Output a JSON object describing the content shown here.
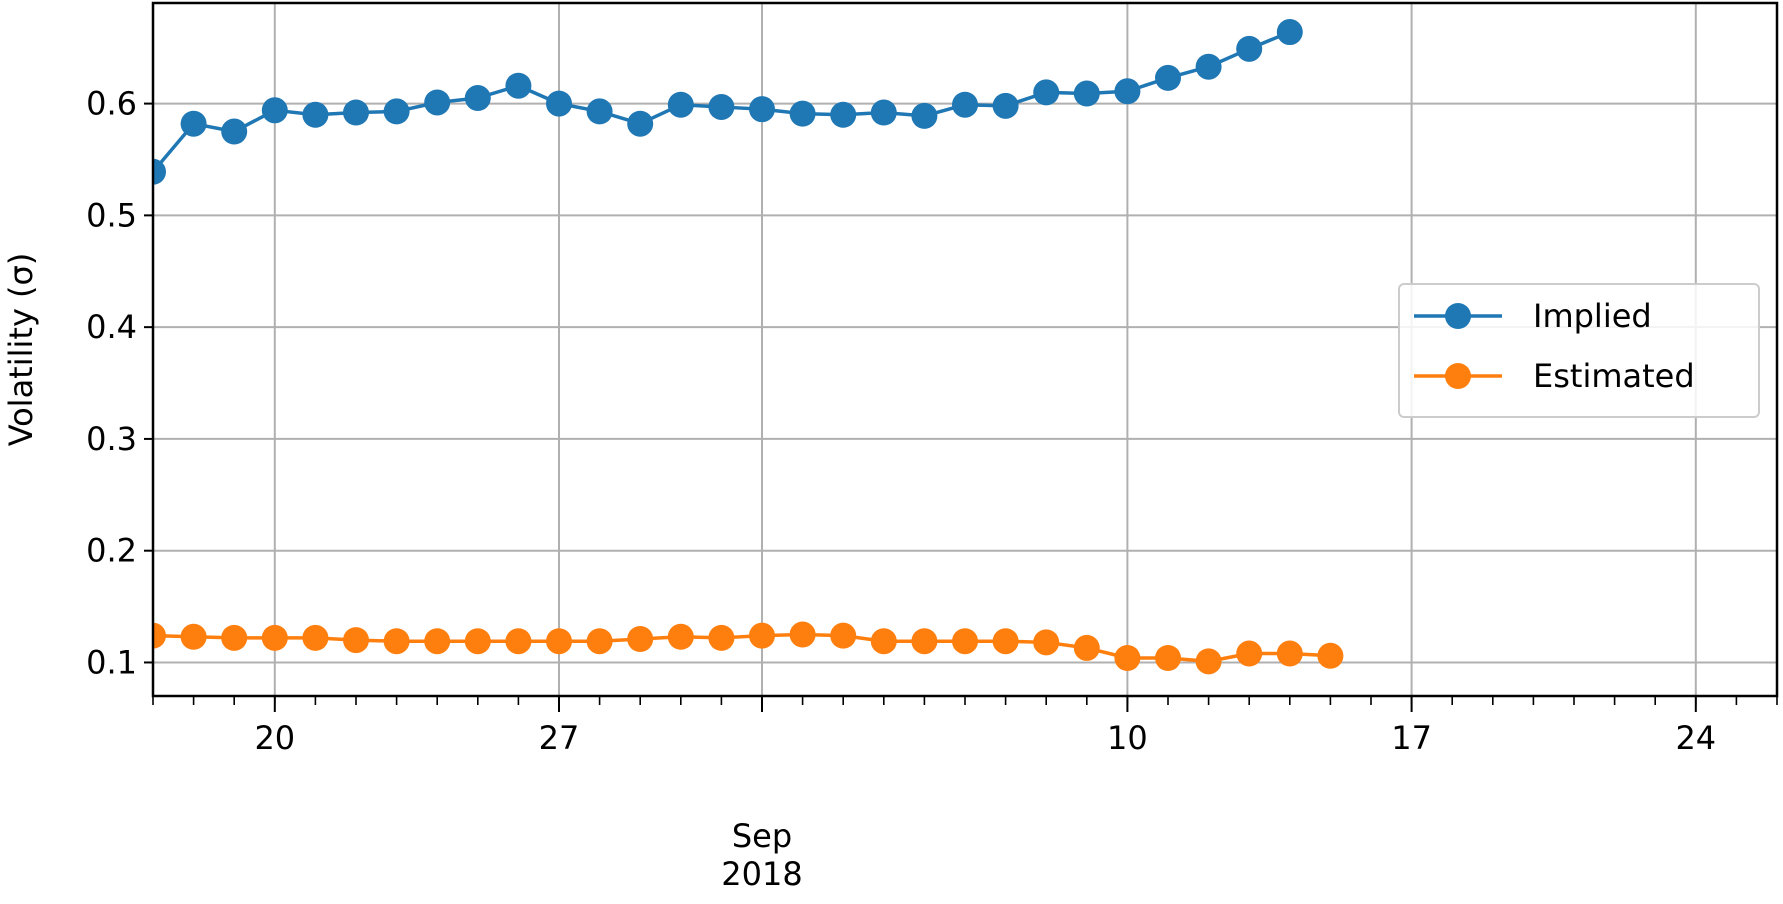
{
  "chart_data": {
    "type": "line",
    "ylabel": "Volatility (σ)",
    "xlabel": "",
    "ylim": [
      0.07,
      0.69
    ],
    "xlim": [
      "2018-08-17",
      "2018-09-26"
    ],
    "yticks": [
      0.1,
      0.2,
      0.3,
      0.4,
      0.5,
      0.6
    ],
    "ytick_labels": [
      "0.1",
      "0.2",
      "0.3",
      "0.4",
      "0.5",
      "0.6"
    ],
    "xticks_major": [
      {
        "date": "2018-08-20",
        "label": "20"
      },
      {
        "date": "2018-08-27",
        "label": "27"
      },
      {
        "date": "2018-09-01",
        "label": "Sep\n2018"
      },
      {
        "date": "2018-09-10",
        "label": "10"
      },
      {
        "date": "2018-09-17",
        "label": "17"
      },
      {
        "date": "2018-09-24",
        "label": "24"
      }
    ],
    "grid": true,
    "legend_position": "center-right",
    "dates": [
      "2018-08-17",
      "2018-08-18",
      "2018-08-19",
      "2018-08-20",
      "2018-08-21",
      "2018-08-22",
      "2018-08-23",
      "2018-08-24",
      "2018-08-25",
      "2018-08-26",
      "2018-08-27",
      "2018-08-28",
      "2018-08-29",
      "2018-08-30",
      "2018-08-31",
      "2018-09-01",
      "2018-09-02",
      "2018-09-03",
      "2018-09-04",
      "2018-09-05",
      "2018-09-06",
      "2018-09-07",
      "2018-09-08",
      "2018-09-09",
      "2018-09-10",
      "2018-09-11",
      "2018-09-12",
      "2018-09-13",
      "2018-09-14",
      "2018-09-15",
      "2018-09-16",
      "2018-09-17",
      "2018-09-18",
      "2018-09-19",
      "2018-09-20",
      "2018-09-21",
      "2018-09-22",
      "2018-09-23",
      "2018-09-24",
      "2018-09-25",
      "2018-09-26"
    ],
    "series": [
      {
        "name": "Implied",
        "color": "#1f77b4",
        "values": [
          0.539,
          0.582,
          0.575,
          0.594,
          0.59,
          0.592,
          0.593,
          0.601,
          0.605,
          0.616,
          0.6,
          0.593,
          0.582,
          0.599,
          0.597,
          0.595,
          0.591,
          0.59,
          0.592,
          0.589,
          0.599,
          0.598,
          0.61,
          0.609,
          0.611,
          0.623,
          0.633,
          0.649,
          0.664,
          null,
          null,
          null,
          null,
          null,
          null,
          null,
          null,
          null,
          null,
          null,
          null
        ]
      },
      {
        "name": "Estimated",
        "color": "#ff7f0e",
        "values": [
          0.124,
          0.123,
          0.122,
          0.122,
          0.122,
          0.12,
          0.119,
          0.119,
          0.119,
          0.119,
          0.119,
          0.119,
          0.121,
          0.123,
          0.122,
          0.124,
          0.125,
          0.124,
          0.119,
          0.119,
          0.119,
          0.119,
          0.118,
          0.113,
          0.104,
          0.104,
          0.101,
          0.108,
          0.108,
          0.106,
          null,
          null,
          null,
          null,
          null,
          null,
          null,
          null,
          null,
          null,
          null
        ]
      }
    ]
  }
}
